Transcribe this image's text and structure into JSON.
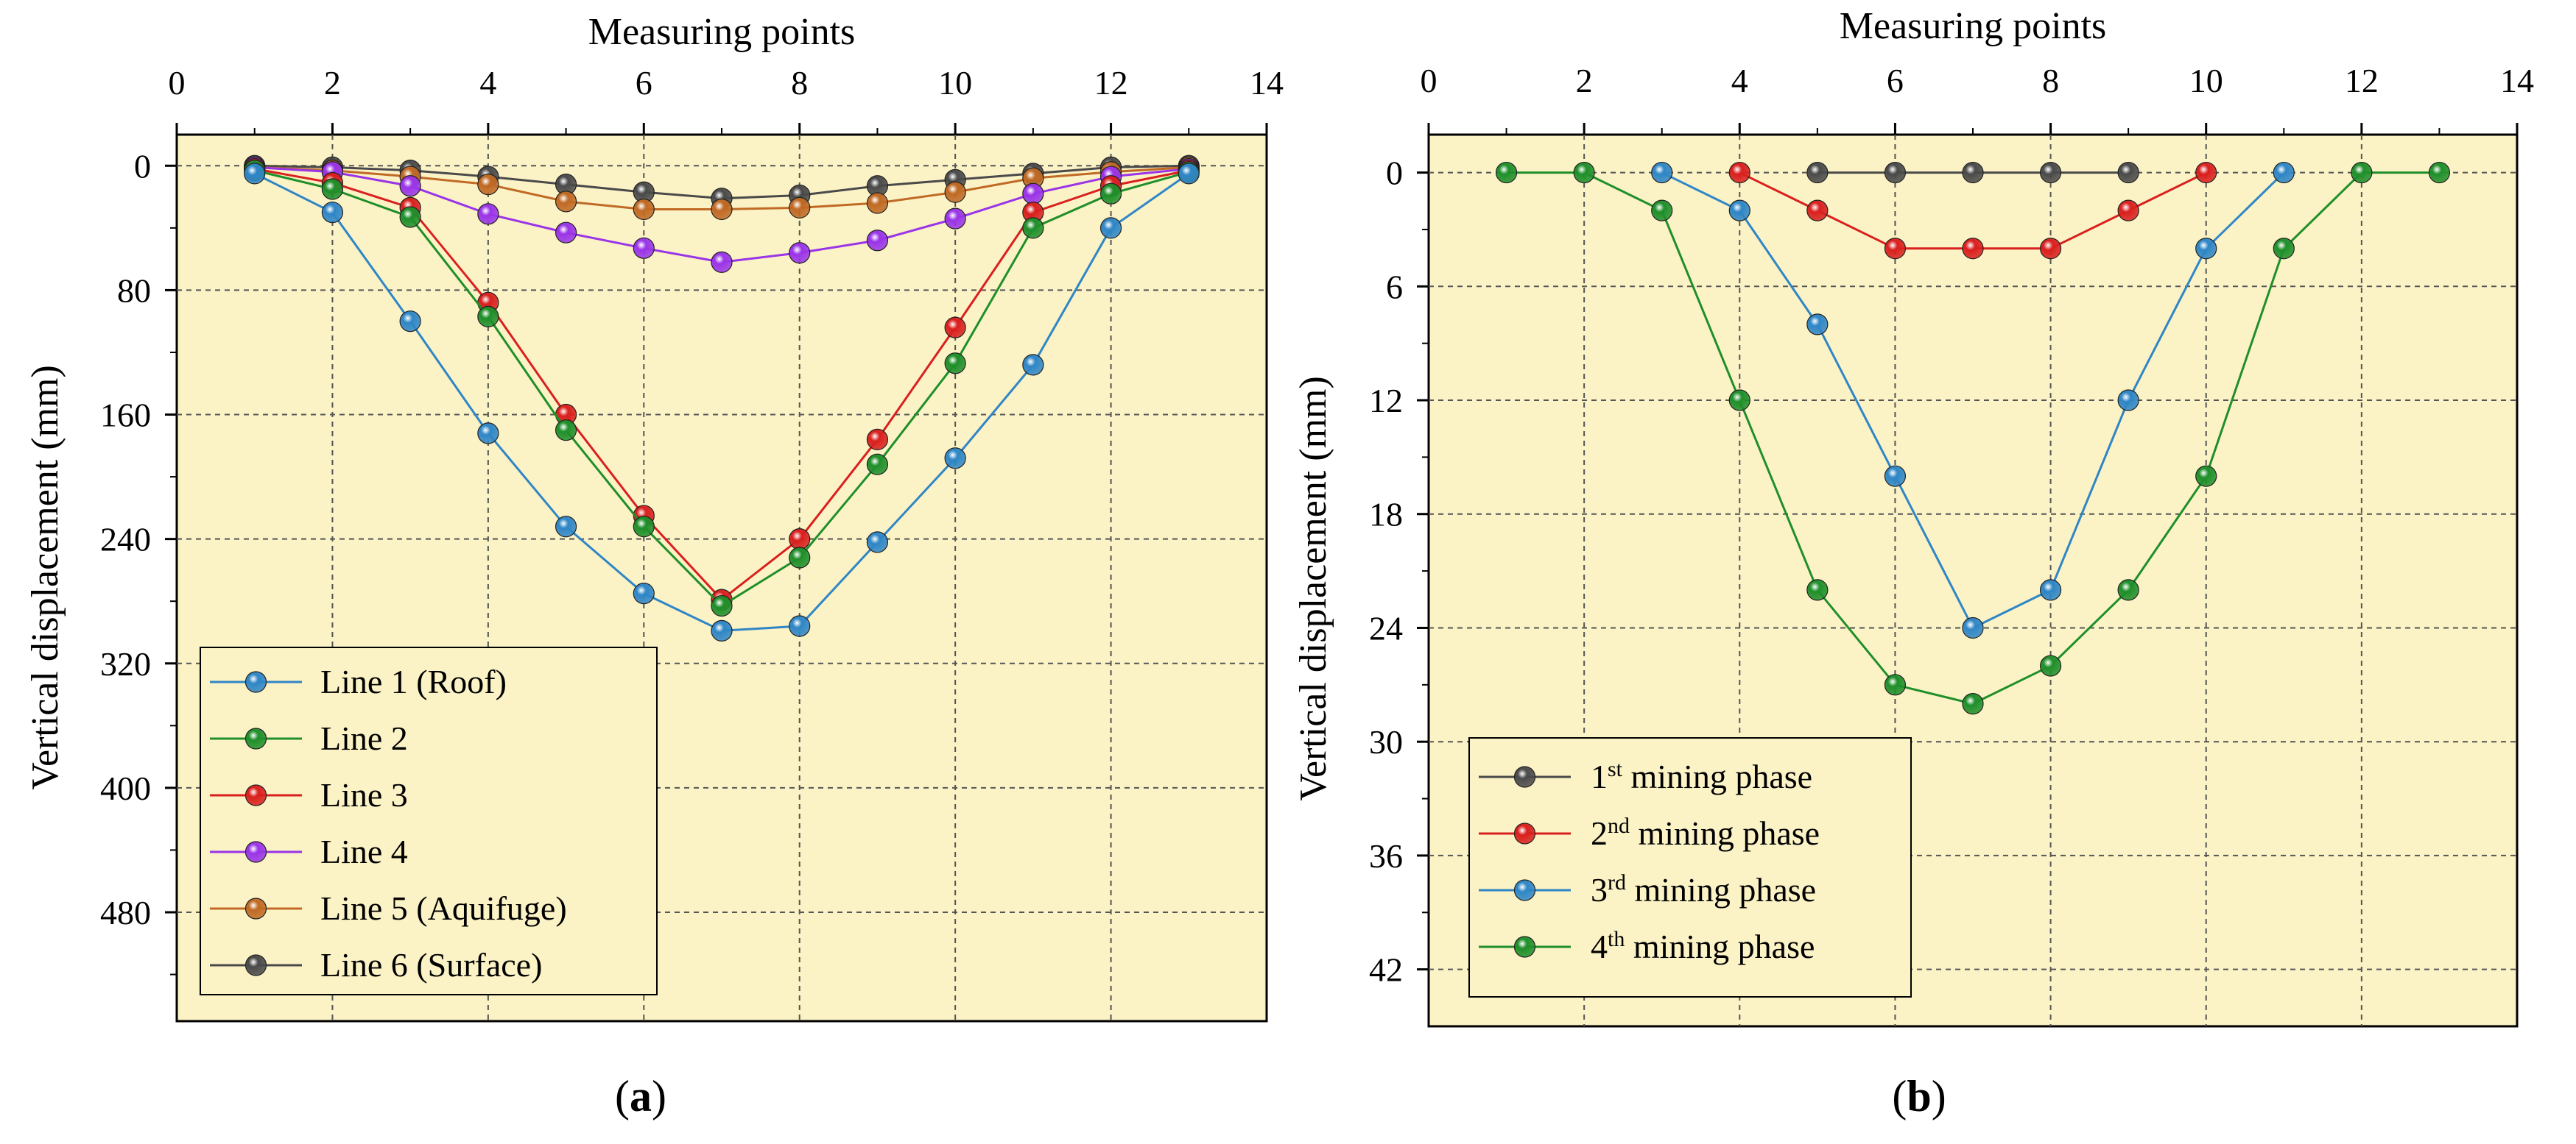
{
  "chart_data": [
    {
      "type": "line",
      "panel_label": "a",
      "xlabel": "Measuring points",
      "ylabel": "Vertical displacement (mm)",
      "xlim": [
        0,
        14
      ],
      "ylim": [
        -20,
        550
      ],
      "y_inverted": true,
      "x_axis_position": "top",
      "xticks": [
        0,
        2,
        4,
        6,
        8,
        10,
        12,
        14
      ],
      "yticks": [
        0,
        80,
        160,
        240,
        320,
        400,
        480
      ],
      "grid": true,
      "legend_position": "bottom-left",
      "background": "#fbf2c5",
      "x": [
        1,
        2,
        3,
        4,
        5,
        6,
        7,
        8,
        9,
        10,
        11,
        12,
        13
      ],
      "series": [
        {
          "name": "Line 1 (Roof)",
          "color": "#2f86c6",
          "values": [
            5,
            30,
            100,
            172,
            232,
            275,
            299,
            296,
            242,
            188,
            128,
            40,
            5
          ]
        },
        {
          "name": "Line 2",
          "color": "#1f8f2a",
          "values": [
            3,
            15,
            33,
            97,
            170,
            232,
            283,
            252,
            192,
            127,
            40,
            18,
            4
          ]
        },
        {
          "name": "Line 3",
          "color": "#d9201e",
          "values": [
            2,
            11,
            27,
            88,
            160,
            225,
            279,
            240,
            176,
            104,
            30,
            13,
            3
          ]
        },
        {
          "name": "Line 4",
          "color": "#9a34e8",
          "values": [
            1,
            4,
            13,
            31,
            43,
            53,
            62,
            56,
            48,
            34,
            18,
            7,
            2
          ]
        },
        {
          "name": "Line 5 (Aquifuge)",
          "color": "#c06a25",
          "values": [
            1,
            3,
            7,
            12,
            23,
            28,
            28,
            27,
            24,
            17,
            8,
            4,
            1
          ]
        },
        {
          "name": "Line 6 (Surface)",
          "color": "#4a4a4a",
          "values": [
            0,
            1,
            3,
            7,
            12,
            17,
            21,
            19,
            13,
            9,
            5,
            1,
            0
          ]
        }
      ]
    },
    {
      "type": "line",
      "panel_label": "b",
      "xlabel": "Measuring points",
      "ylabel": "Vertical displacement (mm)",
      "xlim": [
        0,
        14
      ],
      "ylim": [
        -2,
        45
      ],
      "y_inverted": true,
      "x_axis_position": "top",
      "xticks": [
        0,
        2,
        4,
        6,
        8,
        10,
        12,
        14
      ],
      "yticks": [
        0,
        6,
        12,
        18,
        24,
        30,
        36,
        42
      ],
      "grid": true,
      "legend_position": "bottom-left",
      "background": "#fbf2c5",
      "series": [
        {
          "name_main": "1",
          "name_sup": "st",
          "name_rest": " mining phase",
          "color": "#4a4a4a",
          "x": [
            5,
            6,
            7,
            8,
            9
          ],
          "values": [
            0,
            0,
            0,
            0,
            0
          ]
        },
        {
          "name_main": "2",
          "name_sup": "nd",
          "name_rest": " mining phase",
          "color": "#d9201e",
          "x": [
            4,
            5,
            6,
            7,
            8,
            9,
            10
          ],
          "values": [
            0,
            2,
            4,
            4,
            4,
            2,
            0
          ]
        },
        {
          "name_main": "3",
          "name_sup": "rd",
          "name_rest": " mining phase",
          "color": "#2f86c6",
          "x": [
            3,
            4,
            5,
            6,
            7,
            8,
            9,
            10,
            11
          ],
          "values": [
            0,
            2,
            8,
            16,
            24,
            22,
            12,
            4,
            0
          ]
        },
        {
          "name_main": "4",
          "name_sup": "th",
          "name_rest": " mining phase",
          "color": "#1f8f2a",
          "x": [
            1,
            2,
            3,
            4,
            5,
            6,
            7,
            8,
            9,
            10,
            11,
            12,
            13
          ],
          "values": [
            0,
            0,
            2,
            12,
            22,
            27,
            28,
            26,
            22,
            16,
            4,
            0,
            0
          ]
        }
      ]
    }
  ]
}
